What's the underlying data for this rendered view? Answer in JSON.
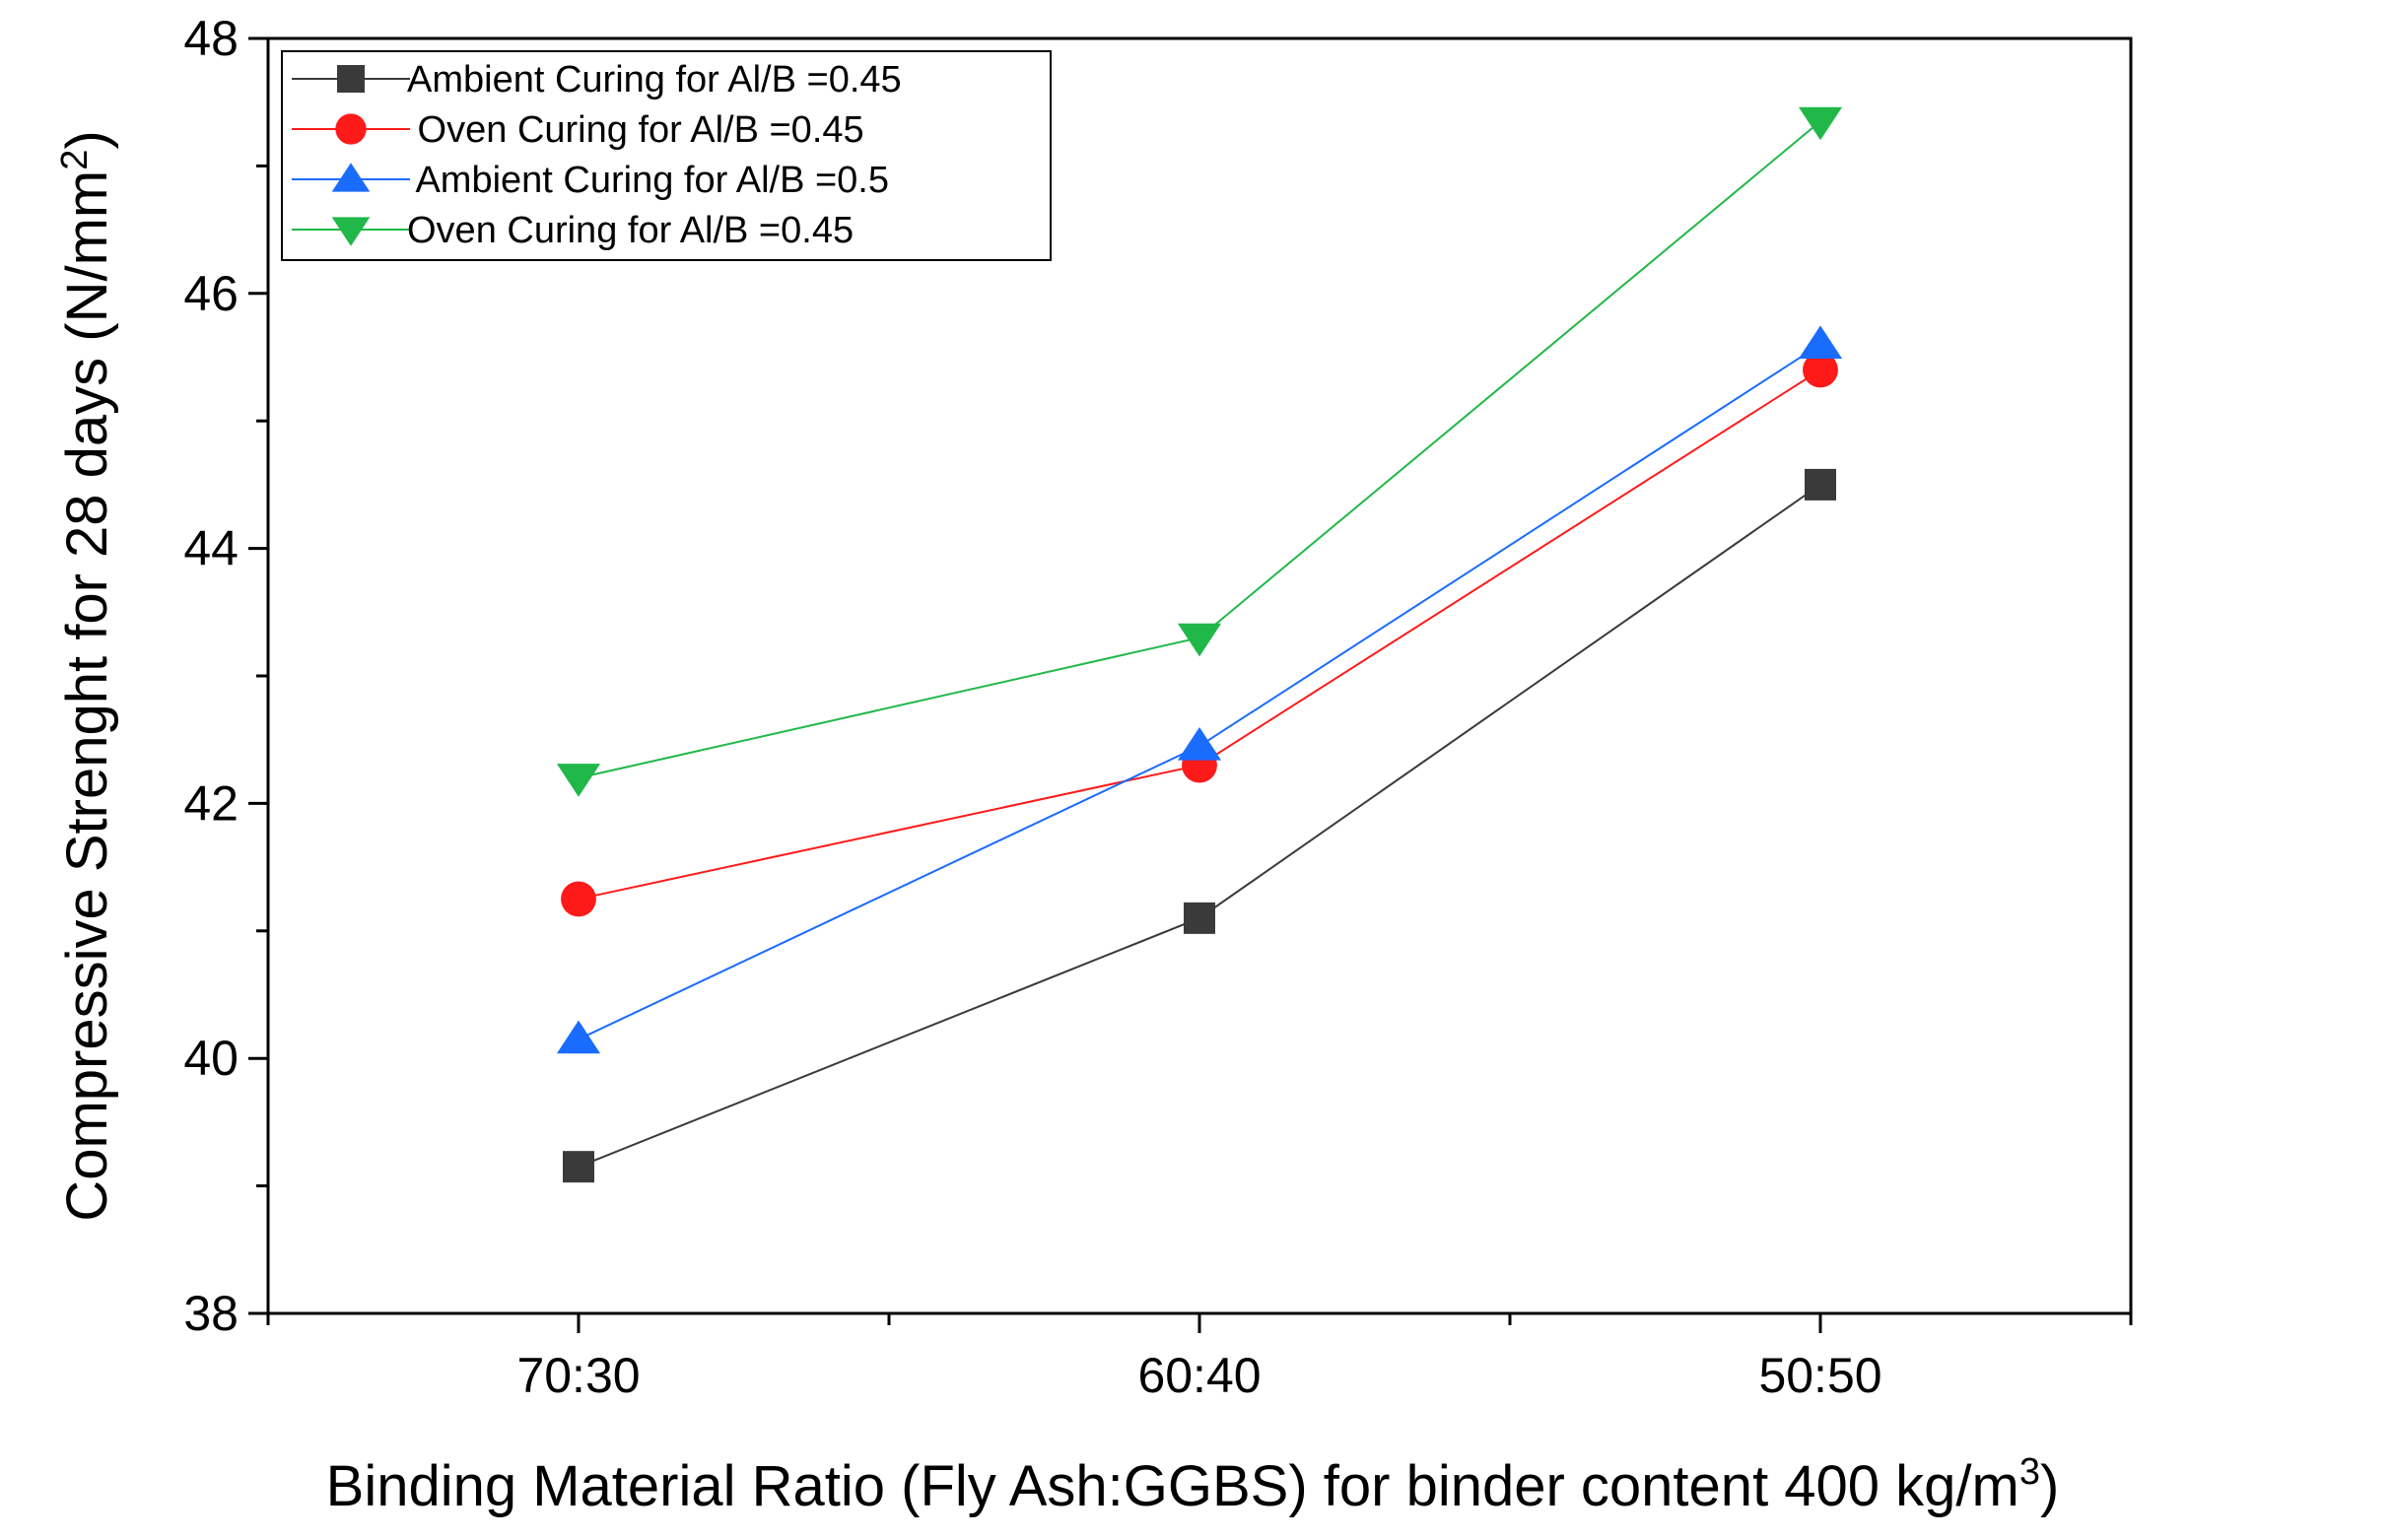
{
  "chart_data": {
    "type": "line",
    "title": "",
    "xlabel": "Binding Material Ratio (Fly Ash:GGBS) for binder content 400 kg/m",
    "xlabel_sup": "3",
    "xlabel_end": ")",
    "ylabel": "Compressive Strenght for 28 days (N/mm",
    "ylabel_sup": "2",
    "ylabel_end": ")",
    "categories": [
      "70:30",
      "60:40",
      "50:50"
    ],
    "ylim": [
      38,
      48
    ],
    "yticks": [
      38,
      40,
      42,
      44,
      46,
      48
    ],
    "legend_position": "top-left",
    "series": [
      {
        "name": "Ambient Curing for Al/B =0.45",
        "marker": "square",
        "color": "#3a3a3a",
        "values": [
          39.15,
          41.1,
          44.5
        ]
      },
      {
        "name": " Oven Curing for Al/B =0.45",
        "marker": "circle",
        "color": "#ff1a1a",
        "values": [
          41.25,
          42.3,
          45.4
        ]
      },
      {
        "name": " Ambient Curing for Al/B =0.5",
        "marker": "triangle-up",
        "color": "#1a6cff",
        "values": [
          40.15,
          42.45,
          45.6
        ]
      },
      {
        "name": "Oven Curing for Al/B =0.45",
        "marker": "triangle-down",
        "color": "#21b84a",
        "values": [
          42.2,
          43.3,
          47.35
        ]
      }
    ]
  }
}
